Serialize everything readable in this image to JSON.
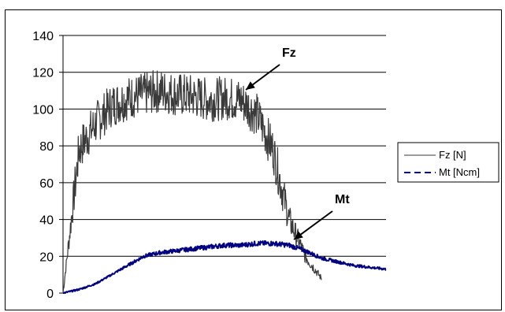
{
  "chart_data": {
    "type": "line",
    "title": "",
    "xlabel": "",
    "ylabel": "",
    "ylim": [
      0,
      140
    ],
    "yticks": [
      0,
      20,
      40,
      60,
      80,
      100,
      120,
      140
    ],
    "grid": true,
    "legend_position": "right",
    "x": [
      0,
      5,
      10,
      15,
      20,
      25,
      30,
      35,
      40,
      45,
      50,
      55,
      60,
      65,
      70,
      75,
      80,
      85,
      90,
      95,
      100
    ],
    "series": [
      {
        "name": "Fz [N]",
        "color": "#3a3a3a",
        "dash": "solid",
        "values": [
          0,
          78,
          92,
          102,
          106,
          108,
          110,
          108,
          107,
          105,
          106,
          105,
          97,
          78,
          40,
          20,
          8,
          null,
          null,
          null,
          null
        ]
      },
      {
        "name": "Mt [Ncm]",
        "color": "#000080",
        "dash": "dashed",
        "values": [
          0,
          2,
          5,
          10,
          15,
          20,
          22,
          23,
          24,
          25,
          26,
          26,
          27,
          27,
          26,
          23,
          19,
          17,
          15,
          14,
          13
        ]
      }
    ],
    "annotations": [
      {
        "text": "Fz",
        "target_series": "Fz [N]"
      },
      {
        "text": "Mt",
        "target_series": "Mt [Ncm]"
      }
    ]
  }
}
